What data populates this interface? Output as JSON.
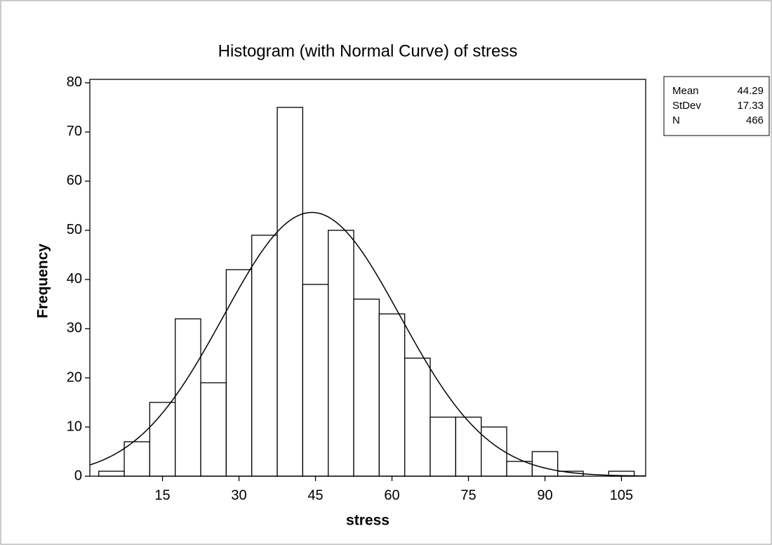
{
  "chart_data": {
    "type": "histogram",
    "title": "Histogram (with Normal Curve) of stress",
    "x_label": "stress",
    "y_label": "Frequency",
    "bins": [
      2.5,
      7.5,
      12.5,
      17.5,
      22.5,
      27.5,
      32.5,
      37.5,
      42.5,
      47.5,
      52.5,
      57.5,
      62.5,
      67.5,
      72.5,
      77.5,
      82.5,
      87.5,
      92.5,
      97.5,
      102.5,
      107.5
    ],
    "counts": [
      1,
      7,
      15,
      32,
      19,
      42,
      49,
      75,
      39,
      50,
      36,
      33,
      24,
      12,
      12,
      10,
      3,
      5,
      1,
      0,
      1
    ],
    "color": "#ffffff",
    "edge_color": "#000000",
    "normal_curve": true,
    "xlim": [
      0.75,
      109.75
    ],
    "xticks": [
      15,
      30,
      45,
      60,
      75,
      90,
      105
    ],
    "ylim": [
      0,
      80.7
    ],
    "yticks": [
      0,
      10,
      20,
      30,
      40,
      50,
      60,
      70,
      80
    ],
    "stats": [
      {
        "label": "Mean",
        "value": 44.29
      },
      {
        "label": "StDev",
        "value": 17.33
      },
      {
        "label": "N",
        "value": 466
      }
    ]
  }
}
